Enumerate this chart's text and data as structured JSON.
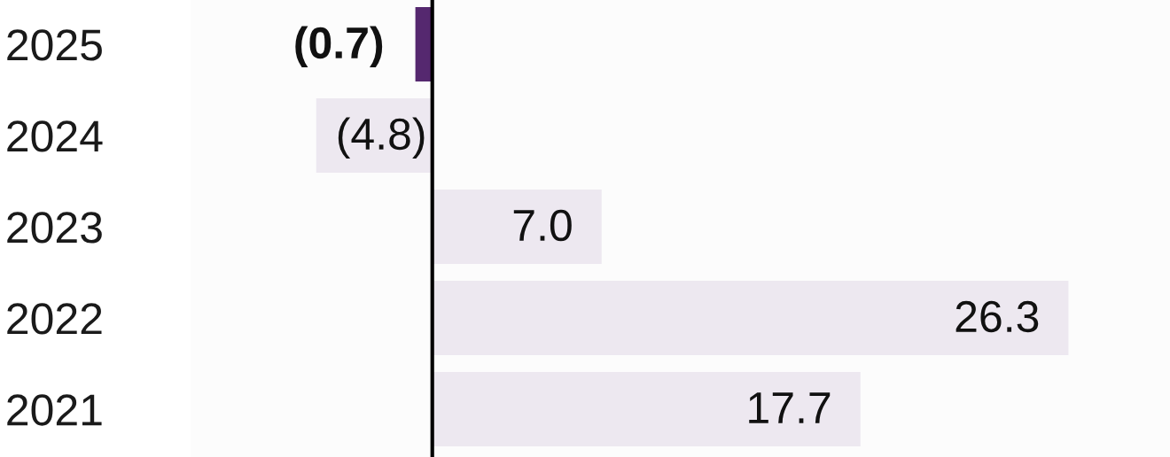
{
  "chart_data": {
    "type": "bar",
    "orientation": "horizontal",
    "categories": [
      "2025",
      "2024",
      "2023",
      "2022",
      "2021"
    ],
    "values": [
      -0.7,
      -4.8,
      7.0,
      26.3,
      17.7
    ],
    "colors": [
      "#55286f",
      "#ede8f0",
      "#ede8f0",
      "#ede8f0",
      "#ede8f0"
    ],
    "value_labels": [
      "(0.7)",
      "(4.8)",
      "7.0",
      "26.3",
      "17.7"
    ],
    "tick_labels": "y"
  }
}
